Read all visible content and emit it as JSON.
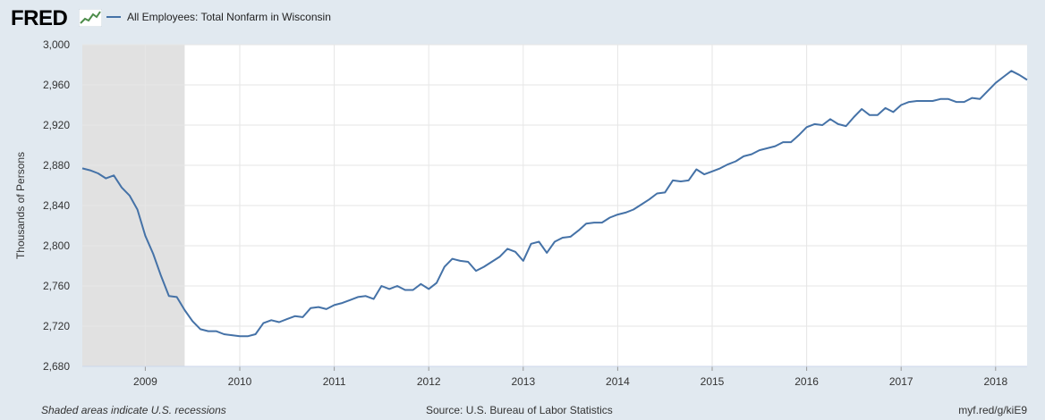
{
  "header": {
    "logo_text": "FRED",
    "logo_graph_icon": "fred-line-graph-icon"
  },
  "colors": {
    "background": "#e1e9f0",
    "plot_background": "#ffffff",
    "series_line": "#4572a7",
    "recession_shade": "#e1e1e1",
    "gridline": "#e6e6e6"
  },
  "footer": {
    "left": "Shaded areas indicate U.S. recessions",
    "center": "Source: U.S. Bureau of Labor Statistics",
    "right": "myf.red/g/kiE9"
  },
  "chart_data": {
    "type": "line",
    "title": "",
    "ylabel": "Thousands of Persons",
    "xlabel": "",
    "ylim": [
      2680,
      3000
    ],
    "xlim": [
      "2008-05",
      "2018-05"
    ],
    "grid": true,
    "legend_placement": "top-left",
    "yticks": [
      2680,
      2720,
      2760,
      2800,
      2840,
      2880,
      2920,
      2960,
      3000
    ],
    "ytick_labels": [
      "2,680",
      "2,720",
      "2,760",
      "2,800",
      "2,840",
      "2,880",
      "2,920",
      "2,960",
      "3,000"
    ],
    "xticks": [
      "2009",
      "2010",
      "2011",
      "2012",
      "2013",
      "2014",
      "2015",
      "2016",
      "2017",
      "2018"
    ],
    "recessions": [
      {
        "start": "2008-05",
        "end": "2009-06"
      }
    ],
    "series": [
      {
        "name": "All Employees: Total Nonfarm in Wisconsin",
        "x": [
          "2008-05",
          "2008-06",
          "2008-07",
          "2008-08",
          "2008-09",
          "2008-10",
          "2008-11",
          "2008-12",
          "2009-01",
          "2009-02",
          "2009-03",
          "2009-04",
          "2009-05",
          "2009-06",
          "2009-07",
          "2009-08",
          "2009-09",
          "2009-10",
          "2009-11",
          "2009-12",
          "2010-01",
          "2010-02",
          "2010-03",
          "2010-04",
          "2010-05",
          "2010-06",
          "2010-07",
          "2010-08",
          "2010-09",
          "2010-10",
          "2010-11",
          "2010-12",
          "2011-01",
          "2011-02",
          "2011-03",
          "2011-04",
          "2011-05",
          "2011-06",
          "2011-07",
          "2011-08",
          "2011-09",
          "2011-10",
          "2011-11",
          "2011-12",
          "2012-01",
          "2012-02",
          "2012-03",
          "2012-04",
          "2012-05",
          "2012-06",
          "2012-07",
          "2012-08",
          "2012-09",
          "2012-10",
          "2012-11",
          "2012-12",
          "2013-01",
          "2013-02",
          "2013-03",
          "2013-04",
          "2013-05",
          "2013-06",
          "2013-07",
          "2013-08",
          "2013-09",
          "2013-10",
          "2013-11",
          "2013-12",
          "2014-01",
          "2014-02",
          "2014-03",
          "2014-04",
          "2014-05",
          "2014-06",
          "2014-07",
          "2014-08",
          "2014-09",
          "2014-10",
          "2014-11",
          "2014-12",
          "2015-01",
          "2015-02",
          "2015-03",
          "2015-04",
          "2015-05",
          "2015-06",
          "2015-07",
          "2015-08",
          "2015-09",
          "2015-10",
          "2015-11",
          "2015-12",
          "2016-01",
          "2016-02",
          "2016-03",
          "2016-04",
          "2016-05",
          "2016-06",
          "2016-07",
          "2016-08",
          "2016-09",
          "2016-10",
          "2016-11",
          "2016-12",
          "2017-01",
          "2017-02",
          "2017-03",
          "2017-04",
          "2017-05",
          "2017-06",
          "2017-07",
          "2017-08",
          "2017-09",
          "2017-10",
          "2017-11",
          "2017-12",
          "2018-01",
          "2018-02",
          "2018-03",
          "2018-04",
          "2018-05"
        ],
        "values": [
          2877,
          2875,
          2872,
          2867,
          2870,
          2858,
          2850,
          2836,
          2810,
          2792,
          2770,
          2750,
          2749,
          2736,
          2725,
          2717,
          2715,
          2715,
          2712,
          2711,
          2710,
          2710,
          2712,
          2723,
          2726,
          2724,
          2727,
          2730,
          2729,
          2738,
          2739,
          2737,
          2741,
          2743,
          2746,
          2749,
          2750,
          2747,
          2760,
          2757,
          2760,
          2756,
          2756,
          2762,
          2757,
          2763,
          2779,
          2787,
          2785,
          2784,
          2775,
          2779,
          2784,
          2789,
          2797,
          2794,
          2785,
          2802,
          2804,
          2793,
          2804,
          2808,
          2809,
          2815,
          2822,
          2823,
          2823,
          2828,
          2831,
          2833,
          2836,
          2841,
          2846,
          2852,
          2853,
          2865,
          2864,
          2865,
          2876,
          2871,
          2874,
          2877,
          2881,
          2884,
          2889,
          2891,
          2895,
          2897,
          2899,
          2903,
          2903,
          2910,
          2918,
          2921,
          2920,
          2926,
          2921,
          2919,
          2928,
          2936,
          2930,
          2930,
          2937,
          2933,
          2940,
          2943,
          2944,
          2944,
          2944,
          2946,
          2946,
          2943,
          2943,
          2947,
          2946,
          2954,
          2962,
          2968,
          2974,
          2970,
          2965
        ]
      }
    ]
  }
}
